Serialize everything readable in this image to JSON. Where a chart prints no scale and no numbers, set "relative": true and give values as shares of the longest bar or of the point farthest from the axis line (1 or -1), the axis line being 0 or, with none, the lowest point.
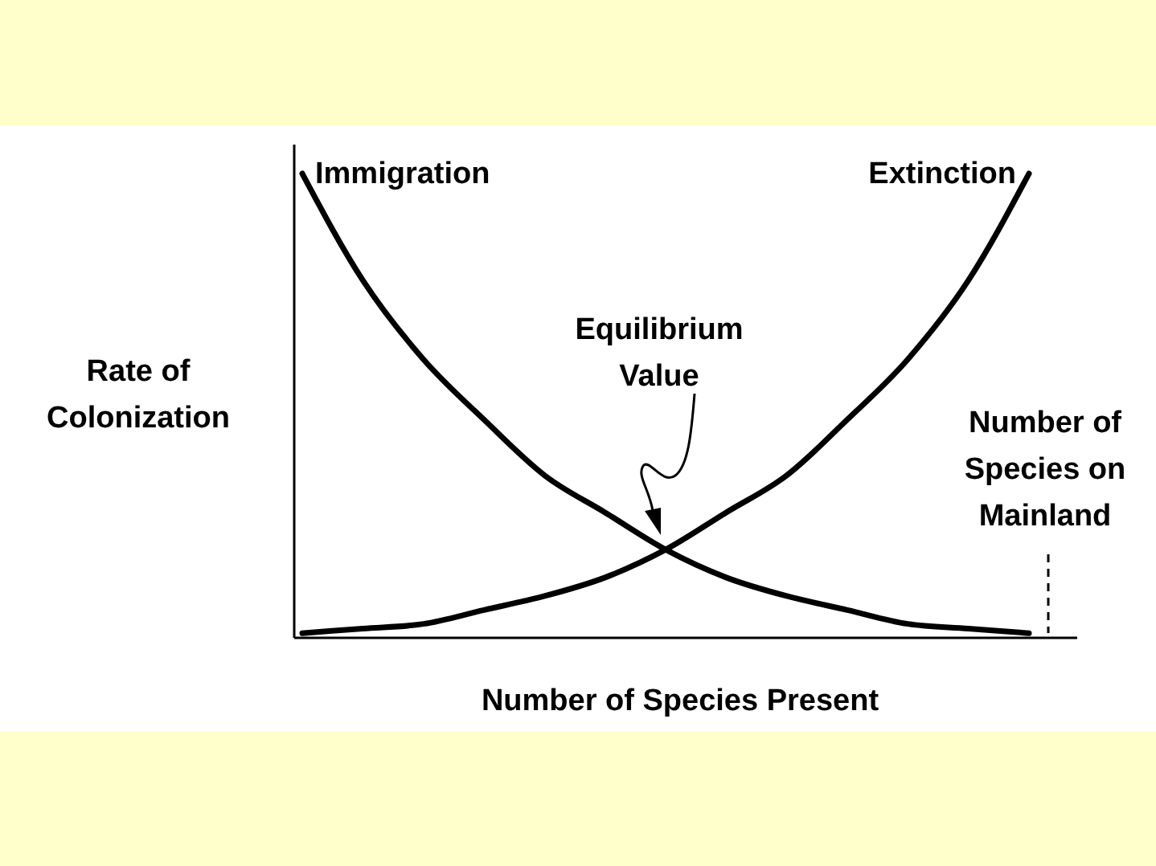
{
  "chart_data": {
    "type": "line",
    "relative": true,
    "xlabel": "Number of Species Present",
    "ylabel": "Rate of\nColonization",
    "categories": [
      null,
      null,
      null,
      null,
      null,
      null,
      null,
      null,
      null,
      null,
      null,
      null,
      null
    ],
    "series": [
      {
        "name": "Immigration",
        "color": "#000000",
        "values": [
          1.0,
          0.77,
          0.6,
          0.47,
          0.35,
          0.27,
          0.19,
          0.13,
          0.09,
          0.06,
          0.03,
          0.02,
          0.01
        ]
      },
      {
        "name": "Extinction",
        "color": "#000000",
        "values": [
          0.01,
          0.02,
          0.03,
          0.06,
          0.09,
          0.13,
          0.19,
          0.27,
          0.35,
          0.47,
          0.6,
          0.77,
          1.0
        ]
      }
    ],
    "annotations": [
      "Equilibrium\nValue",
      "Number of\nSpecies on\nMainland"
    ],
    "marker": "none",
    "line_style": "solid"
  }
}
